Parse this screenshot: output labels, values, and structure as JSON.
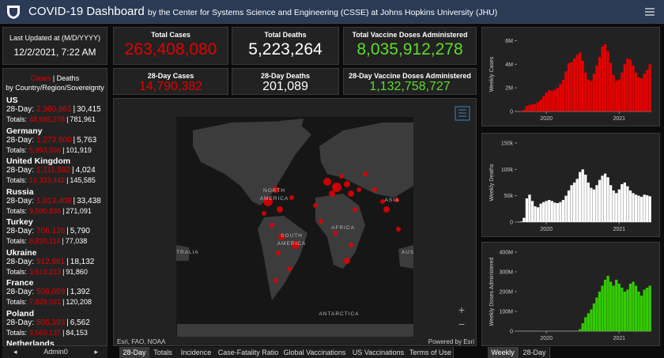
{
  "header": {
    "title": "COVID-19 Dashboard",
    "subtitle": "by the Center for Systems Science and Engineering (CSSE) at Johns Hopkins University (JHU)"
  },
  "updated": {
    "label": "Last Updated at (M/D/YYYY)",
    "value": "12/2/2021, 7:22 AM"
  },
  "stats": [
    {
      "label": "Total Cases",
      "value": "263,408,080",
      "color": "#e60000"
    },
    {
      "label": "Total Deaths",
      "value": "5,223,264",
      "color": "#ffffff"
    },
    {
      "label": "Total Vaccine Doses Administered",
      "value": "8,035,912,278",
      "color": "#5fdc2c"
    },
    {
      "label": "28-Day Cases",
      "value": "14,790,382",
      "color": "#e60000"
    },
    {
      "label": "28-Day Deaths",
      "value": "201,089",
      "color": "#ffffff"
    },
    {
      "label": "28-Day Vaccine Doses Administered",
      "value": "1,132,758,727",
      "color": "#5fdc2c"
    }
  ],
  "list": {
    "cases_word": "Cases",
    "separator": "|",
    "deaths_word": "Deaths",
    "heading_rest": "by Country/Region/Sovereignty",
    "period_label": "28-Day:",
    "totals_label": "Totals:",
    "footer": "Admin0",
    "countries": [
      {
        "name": "US",
        "period_cases": "2,360,861",
        "period_deaths": "30,415",
        "total_cases": "48,685,278",
        "total_deaths": "781,961"
      },
      {
        "name": "Germany",
        "period_cases": "1,273,600",
        "period_deaths": "5,763",
        "total_cases": "5,953,596",
        "total_deaths": "101,919"
      },
      {
        "name": "United Kingdom",
        "period_cases": "1,111,592",
        "period_deaths": "4,024",
        "total_cases": "10,333,442",
        "total_deaths": "145,585"
      },
      {
        "name": "Russia",
        "period_cases": "1,013,408",
        "period_deaths": "33,438",
        "total_cases": "9,500,836",
        "total_deaths": "271,091"
      },
      {
        "name": "Turkey",
        "period_cases": "706,126",
        "period_deaths": "5,790",
        "total_cases": "8,820,114",
        "total_deaths": "77,038"
      },
      {
        "name": "Ukraine",
        "period_cases": "512,961",
        "period_deaths": "18,132",
        "total_cases": "3,619,223",
        "total_deaths": "91,860"
      },
      {
        "name": "France",
        "period_cases": "506,059",
        "period_deaths": "1,392",
        "total_cases": "7,829,031",
        "total_deaths": "120,208"
      },
      {
        "name": "Poland",
        "period_cases": "505,393",
        "period_deaths": "6,562",
        "total_cases": "3,569,137",
        "total_deaths": "84,153"
      },
      {
        "name": "Netherlands"
      }
    ]
  },
  "map": {
    "labels": [
      "NORTH",
      "AMERICA",
      "SOUTH",
      "AMERICA",
      "AFRICA",
      "ASIA",
      "TRALIA",
      "AUS",
      "ANTARCTICA"
    ],
    "attribution": "Esri, FAO, NOAA",
    "powered": "Powered by Esri",
    "zoom_in": "+",
    "zoom_out": "−"
  },
  "tabs": [
    "28-Day",
    "Totals",
    "Incidence",
    "Case-Fatality Ratio",
    "Global Vaccinations",
    "US Vaccinations",
    "Terms of Use"
  ],
  "chart_tabs": [
    "Weekly",
    "28-Day"
  ],
  "chart_data": [
    {
      "type": "bar",
      "y_label": "Weekly Cases",
      "color": "#e60000",
      "categories": [
        null,
        null,
        null,
        null,
        null,
        null,
        null,
        null,
        null,
        null,
        "2020",
        null,
        null,
        null,
        null,
        null,
        null,
        null,
        null,
        null,
        null,
        null,
        null,
        null,
        null,
        null,
        null,
        null,
        null,
        null,
        null,
        null,
        null,
        null,
        null,
        null,
        "2021",
        null,
        null,
        null,
        null,
        null,
        null,
        null,
        null,
        null,
        null,
        null
      ],
      "values": [
        10000,
        40000,
        150000,
        450000,
        560000,
        600000,
        650000,
        800000,
        1000000,
        1300000,
        1600000,
        1800000,
        1750000,
        1850000,
        2000000,
        2300000,
        2700000,
        3400000,
        4100000,
        4200000,
        4500000,
        4800000,
        5000000,
        4300000,
        3300000,
        2700000,
        2600000,
        3200000,
        3900000,
        4600000,
        5500000,
        5700000,
        5100000,
        4100000,
        3100000,
        2600000,
        2700000,
        3300000,
        4000000,
        4500000,
        4400000,
        3900000,
        3300000,
        2900000,
        2800000,
        3200000,
        3500000,
        4000000
      ],
      "ylim": [
        0,
        6300000
      ],
      "yticks": [
        0,
        {
          "value": 2000000,
          "label": "2M"
        },
        {
          "value": 4000000,
          "label": "4M"
        },
        {
          "value": 6000000,
          "label": "6M"
        }
      ]
    },
    {
      "type": "bar",
      "y_label": "Weekly Deaths",
      "color": "#ffffff",
      "categories": [
        null,
        null,
        null,
        null,
        null,
        null,
        null,
        null,
        null,
        null,
        "2020",
        null,
        null,
        null,
        null,
        null,
        null,
        null,
        null,
        null,
        null,
        null,
        null,
        null,
        null,
        null,
        null,
        null,
        null,
        null,
        null,
        null,
        null,
        null,
        null,
        null,
        "2021",
        null,
        null,
        null,
        null,
        null,
        null,
        null,
        null,
        null,
        null,
        null
      ],
      "values": [
        200,
        1000,
        8000,
        45000,
        52000,
        40000,
        30000,
        28000,
        35000,
        38000,
        40000,
        42000,
        40000,
        37000,
        36000,
        38000,
        42000,
        50000,
        60000,
        70000,
        75000,
        82000,
        95000,
        100000,
        90000,
        75000,
        65000,
        62000,
        70000,
        80000,
        88000,
        92000,
        85000,
        70000,
        60000,
        55000,
        62000,
        72000,
        75000,
        68000,
        60000,
        55000,
        52000,
        50000,
        48000,
        52000,
        51000,
        49000
      ],
      "ylim": [
        0,
        150000
      ],
      "yticks": [
        0,
        {
          "value": 50000,
          "label": "50k"
        },
        {
          "value": 100000,
          "label": "100k"
        },
        {
          "value": 150000,
          "label": "150k"
        }
      ]
    },
    {
      "type": "bar",
      "y_label": "Weekly Doses Administered",
      "color": "#33cc00",
      "categories": [
        null,
        null,
        null,
        null,
        null,
        null,
        null,
        null,
        null,
        null,
        "2020",
        null,
        null,
        null,
        null,
        null,
        null,
        null,
        null,
        null,
        null,
        null,
        null,
        null,
        null,
        null,
        null,
        null,
        null,
        null,
        null,
        null,
        null,
        null,
        null,
        null,
        "2021",
        null,
        null,
        null,
        null,
        null,
        null,
        null,
        null,
        null,
        null,
        null
      ],
      "values": [
        0,
        0,
        0,
        0,
        0,
        0,
        0,
        0,
        0,
        0,
        0,
        0,
        0,
        0,
        0,
        0,
        0,
        0,
        0,
        0,
        0,
        0,
        10000000,
        40000000,
        70000000,
        90000000,
        110000000,
        140000000,
        170000000,
        200000000,
        230000000,
        260000000,
        280000000,
        250000000,
        230000000,
        260000000,
        240000000,
        220000000,
        200000000,
        210000000,
        240000000,
        250000000,
        230000000,
        200000000,
        180000000,
        210000000,
        220000000,
        230000000
      ],
      "ylim": [
        0,
        400000000
      ],
      "yticks": [
        0,
        {
          "value": 100000000,
          "label": "100M"
        },
        {
          "value": 200000000,
          "label": "200M"
        },
        {
          "value": 300000000,
          "label": "300M"
        },
        {
          "value": 400000000,
          "label": "400M"
        }
      ]
    }
  ]
}
